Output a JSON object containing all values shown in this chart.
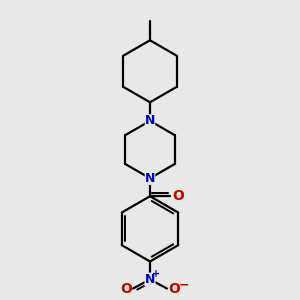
{
  "background_color": "#e8e8e8",
  "bond_color": "#000000",
  "nitrogen_color": "#0000cd",
  "oxygen_color": "#cc0000",
  "line_width": 1.6,
  "figsize": [
    3.0,
    3.0
  ],
  "dpi": 100,
  "xlim": [
    1.0,
    9.0
  ],
  "ylim": [
    0.5,
    9.5
  ]
}
